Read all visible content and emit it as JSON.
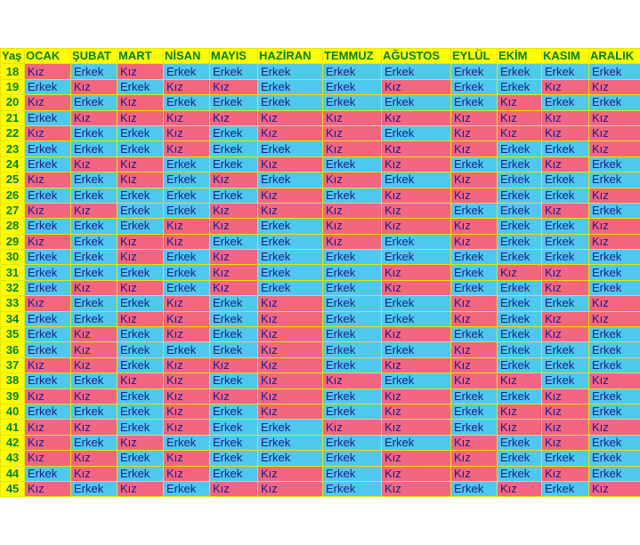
{
  "colors": {
    "erkek": "#4fc8ee",
    "kiz": "#f26680",
    "header": "#ffff00",
    "header_text": "#008000"
  },
  "header": [
    "Yaş",
    "OCAK",
    "ŞUBAT",
    "MART",
    "NİSAN",
    "MAYIS",
    "HAZİRAN",
    "TEMMUZ",
    "AĞUSTOS",
    "EYLÜL",
    "EKİM",
    "KASIM",
    "ARALIK"
  ],
  "rows": [
    {
      "age": "18",
      "values": [
        "Kız",
        "Erkek",
        "Kız",
        "Erkek",
        "Erkek",
        "Erkek",
        "Erkek",
        "Erkek",
        "Erkek",
        "Erkek",
        "Erkek",
        "Erkek"
      ]
    },
    {
      "age": "19",
      "values": [
        "Erkek",
        "Kız",
        "Erkek",
        "Kız",
        "Kız",
        "Erkek",
        "Erkek",
        "Kız",
        "Erkek",
        "Erkek",
        "Kız",
        "Kız"
      ]
    },
    {
      "age": "20",
      "values": [
        "Kız",
        "Erkek",
        "Kız",
        "Erkek",
        "Erkek",
        "Erkek",
        "Erkek",
        "Erkek",
        "Erkek",
        "Kız",
        "Erkek",
        "Erkek"
      ]
    },
    {
      "age": "21",
      "values": [
        "Erkek",
        "Kız",
        "Kız",
        "Kız",
        "Kız",
        "Kız",
        "Kız",
        "Kız",
        "Kız",
        "Kız",
        "Kız",
        "Kız"
      ]
    },
    {
      "age": "22",
      "values": [
        "Kız",
        "Erkek",
        "Erkek",
        "Kız",
        "Erkek",
        "Kız",
        "Kız",
        "Erkek",
        "Kız",
        "Kız",
        "Kız",
        "Kız"
      ]
    },
    {
      "age": "23",
      "values": [
        "Erkek",
        "Erkek",
        "Erkek",
        "Kız",
        "Erkek",
        "Erkek",
        "Kız",
        "Kız",
        "Kız",
        "Erkek",
        "Erkek",
        "Kız"
      ]
    },
    {
      "age": "24",
      "values": [
        "Erkek",
        "Kız",
        "Kız",
        "Erkek",
        "Erkek",
        "Kız",
        "Erkek",
        "Kız",
        "Erkek",
        "Erkek",
        "Kız",
        "Erkek"
      ]
    },
    {
      "age": "25",
      "values": [
        "Kız",
        "Erkek",
        "Kız",
        "Erkek",
        "Kız",
        "Erkek",
        "Kız",
        "Erkek",
        "Kız",
        "Erkek",
        "Erkek",
        "Erkek"
      ]
    },
    {
      "age": "26",
      "values": [
        "Erkek",
        "Erkek",
        "Erkek",
        "Erkek",
        "Erkek",
        "Kız",
        "Erkek",
        "Kız",
        "Kız",
        "Erkek",
        "Erkek",
        "Kız"
      ]
    },
    {
      "age": "27",
      "values": [
        "Kız",
        "Kız",
        "Erkek",
        "Erkek",
        "Kız",
        "Kız",
        "Kız",
        "Kız",
        "Erkek",
        "Erkek",
        "Kız",
        "Erkek"
      ]
    },
    {
      "age": "28",
      "values": [
        "Erkek",
        "Erkek",
        "Erkek",
        "Kız",
        "Kız",
        "Erkek",
        "Kız",
        "Kız",
        "Kız",
        "Erkek",
        "Erkek",
        "Kız"
      ]
    },
    {
      "age": "29",
      "values": [
        "Kız",
        "Erkek",
        "Kız",
        "Kız",
        "Erkek",
        "Erkek",
        "Kız",
        "Erkek",
        "Kız",
        "Erkek",
        "Erkek",
        "Kız"
      ]
    },
    {
      "age": "30",
      "values": [
        "Erkek",
        "Erkek",
        "Kız",
        "Erkek",
        "Kız",
        "Erkek",
        "Erkek",
        "Erkek",
        "Erkek",
        "Erkek",
        "Erkek",
        "Erkek"
      ]
    },
    {
      "age": "31",
      "values": [
        "Erkek",
        "Erkek",
        "Erkek",
        "Erkek",
        "Kız",
        "Erkek",
        "Erkek",
        "Kız",
        "Erkek",
        "Kız",
        "Kız",
        "Erkek"
      ]
    },
    {
      "age": "32",
      "values": [
        "Erkek",
        "Kız",
        "Kız",
        "Erkek",
        "Kız",
        "Erkek",
        "Erkek",
        "Kız",
        "Erkek",
        "Erkek",
        "Kız",
        "Erkek"
      ]
    },
    {
      "age": "33",
      "values": [
        "Kız",
        "Erkek",
        "Erkek",
        "Kız",
        "Erkek",
        "Kız",
        "Erkek",
        "Erkek",
        "Kız",
        "Erkek",
        "Erkek",
        "Kız"
      ]
    },
    {
      "age": "34",
      "values": [
        "Erkek",
        "Erkek",
        "Kız",
        "Kız",
        "Erkek",
        "Kız",
        "Erkek",
        "Erkek",
        "Kız",
        "Erkek",
        "Kız",
        "Kız"
      ]
    },
    {
      "age": "35",
      "values": [
        "Erkek",
        "Kız",
        "Erkek",
        "Kız",
        "Erkek",
        "Kız",
        "Erkek",
        "Kız",
        "Erkek",
        "Erkek",
        "Kız",
        "Erkek"
      ]
    },
    {
      "age": "36",
      "values": [
        "Erkek",
        "Kız",
        "Erkek",
        "Erkek",
        "Erkek",
        "Kız",
        "Erkek",
        "Erkek",
        "Kız",
        "Erkek",
        "Erkek",
        "Erkek"
      ]
    },
    {
      "age": "37",
      "values": [
        "Kız",
        "Kız",
        "Erkek",
        "Kız",
        "Kız",
        "Kız",
        "Erkek",
        "Kız",
        "Kız",
        "Erkek",
        "Erkek",
        "Erkek"
      ]
    },
    {
      "age": "38",
      "values": [
        "Erkek",
        "Erkek",
        "Kız",
        "Kız",
        "Erkek",
        "Kız",
        "Kız",
        "Erkek",
        "Kız",
        "Kız",
        "Erkek",
        "Kız"
      ]
    },
    {
      "age": "39",
      "values": [
        "Kız",
        "Kız",
        "Erkek",
        "Kız",
        "Kız",
        "Kız",
        "Erkek",
        "Kız",
        "Erkek",
        "Erkek",
        "Kız",
        "Erkek"
      ]
    },
    {
      "age": "40",
      "values": [
        "Erkek",
        "Erkek",
        "Erkek",
        "Kız",
        "Erkek",
        "Kız",
        "Erkek",
        "Kız",
        "Erkek",
        "Kız",
        "Kız",
        "Erkek"
      ]
    },
    {
      "age": "41",
      "values": [
        "Kız",
        "Kız",
        "Erkek",
        "Kız",
        "Erkek",
        "Erkek",
        "Kız",
        "Kız",
        "Erkek",
        "Kız",
        "Kız",
        "Kız"
      ]
    },
    {
      "age": "42",
      "values": [
        "Kız",
        "Erkek",
        "Kız",
        "Erkek",
        "Erkek",
        "Erkek",
        "Erkek",
        "Erkek",
        "Kız",
        "Erkek",
        "Kız",
        "Erkek"
      ]
    },
    {
      "age": "43",
      "values": [
        "Kız",
        "Kız",
        "Erkek",
        "Kız",
        "Erkek",
        "Erkek",
        "Erkek",
        "Kız",
        "Kız",
        "Erkek",
        "Erkek",
        "Erkek"
      ]
    },
    {
      "age": "44",
      "values": [
        "Erkek",
        "Kız",
        "Erkek",
        "Kız",
        "Erkek",
        "Kız",
        "Erkek",
        "Kız",
        "Kız",
        "Erkek",
        "Kız",
        "Erkek"
      ]
    },
    {
      "age": "45",
      "values": [
        "Kız",
        "Erkek",
        "Kız",
        "Erkek",
        "Kız",
        "Kız",
        "Erkek",
        "Kız",
        "Erkek",
        "Kız",
        "Erkek",
        "Kız"
      ]
    }
  ]
}
